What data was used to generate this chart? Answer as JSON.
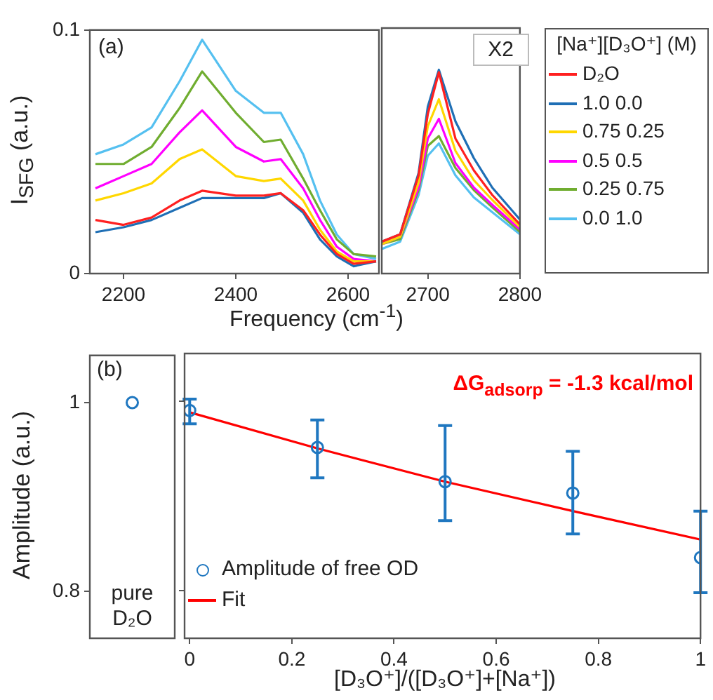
{
  "chart_data": [
    {
      "type": "line",
      "ylabel": "I$_{SFG}$ (a.u.)",
      "xlabel": "Frequency (cm$^{-1}$)",
      "x": [
        2150,
        2200,
        2250,
        2300,
        2340,
        2400,
        2450,
        2480,
        2520,
        2550,
        2580,
        2610,
        2650
      ],
      "xlim": [
        2140,
        2655
      ],
      "xticks": [
        2200,
        2400,
        2600
      ],
      "ylim": [
        0,
        0.1
      ],
      "yticks": [
        0,
        0.1
      ],
      "annotations": [
        "(a)"
      ],
      "series": [
        {
          "color": "#ff2020",
          "values": [
            0.022,
            0.02,
            0.023,
            0.03,
            0.034,
            0.032,
            0.032,
            0.033,
            0.026,
            0.016,
            0.008,
            0.004,
            0.005
          ]
        },
        {
          "color": "#1f6fb5",
          "values": [
            0.017,
            0.019,
            0.022,
            0.027,
            0.031,
            0.031,
            0.031,
            0.033,
            0.025,
            0.014,
            0.007,
            0.003,
            0.005
          ]
        },
        {
          "color": "#ffd700",
          "values": [
            0.03,
            0.033,
            0.037,
            0.047,
            0.051,
            0.04,
            0.038,
            0.039,
            0.03,
            0.018,
            0.009,
            0.005,
            0.005
          ]
        },
        {
          "color": "#ff00ff",
          "values": [
            0.035,
            0.04,
            0.045,
            0.058,
            0.067,
            0.052,
            0.046,
            0.047,
            0.035,
            0.022,
            0.011,
            0.006,
            0.005
          ]
        },
        {
          "color": "#70ad30",
          "values": [
            0.045,
            0.045,
            0.052,
            0.068,
            0.083,
            0.066,
            0.054,
            0.055,
            0.039,
            0.026,
            0.014,
            0.008,
            0.007
          ]
        },
        {
          "color": "#55c0f0",
          "values": [
            0.049,
            0.053,
            0.06,
            0.079,
            0.096,
            0.075,
            0.066,
            0.066,
            0.049,
            0.03,
            0.016,
            0.008,
            0.006
          ]
        }
      ]
    },
    {
      "type": "line",
      "x": [
        2650,
        2670,
        2690,
        2700,
        2712,
        2730,
        2750,
        2770,
        2800
      ],
      "xlim": [
        2650,
        2800
      ],
      "xticks": [
        2700,
        2800
      ],
      "ylim": [
        0,
        0.1
      ],
      "tick_labels": "x",
      "legend": "right",
      "legend_title": "[Na⁺][D₃O⁺] (M)",
      "annotations": [
        "X2"
      ],
      "series": [
        {
          "name": "D₂O",
          "color": "#ff2020",
          "values": [
            0.013,
            0.016,
            0.04,
            0.065,
            0.082,
            0.055,
            0.042,
            0.032,
            0.02
          ]
        },
        {
          "name": "1.0 0.0",
          "color": "#1f6fb5",
          "values": [
            0.013,
            0.016,
            0.041,
            0.068,
            0.083,
            0.062,
            0.047,
            0.035,
            0.022
          ]
        },
        {
          "name": "0.75 0.25",
          "color": "#ffd700",
          "values": [
            0.012,
            0.015,
            0.037,
            0.06,
            0.071,
            0.05,
            0.038,
            0.03,
            0.019
          ]
        },
        {
          "name": "0.5 0.5",
          "color": "#ff00ff",
          "values": [
            0.012,
            0.015,
            0.035,
            0.055,
            0.063,
            0.045,
            0.035,
            0.028,
            0.018
          ]
        },
        {
          "name": "0.25 0.75",
          "color": "#70ad30",
          "values": [
            0.012,
            0.014,
            0.034,
            0.052,
            0.056,
            0.043,
            0.034,
            0.027,
            0.017
          ]
        },
        {
          "name": "0.0 1.0",
          "color": "#55c0f0",
          "values": [
            0.01,
            0.013,
            0.032,
            0.048,
            0.053,
            0.04,
            0.031,
            0.025,
            0.016
          ]
        }
      ]
    },
    {
      "type": "scatter",
      "categories": [
        "pure D₂O"
      ],
      "ylim": [
        0.75,
        1.05
      ],
      "yticks": [
        0.8,
        1
      ],
      "ylabel": "Amplitude (a.u.)",
      "marker": "circle",
      "annotations": [
        "(b)"
      ],
      "series": [
        {
          "color": "#1f77c0",
          "values": [
            1.0
          ]
        }
      ]
    },
    {
      "type": "scatter",
      "x": [
        0,
        0.25,
        0.5,
        0.75,
        1
      ],
      "xlim": [
        -0.01,
        1.0
      ],
      "xticks": [
        0,
        0.2,
        0.4,
        0.6,
        0.8,
        1
      ],
      "ylim": [
        0.75,
        1.05
      ],
      "yticks": [
        0.8,
        1
      ],
      "tick_labels": "x",
      "xlabel": "[D₃O⁺]/([D₃O⁺]+[Na⁺])",
      "legend": "bottom left",
      "marker": "circle",
      "annotations": [
        "ΔG$_{adsorp}$ = -1.3 kcal/mol"
      ],
      "series": [
        {
          "name": "Amplitude of free OD",
          "color": "#1f77c0",
          "values": [
            0.99,
            0.951,
            0.915,
            0.903,
            0.835
          ],
          "errors": [
            [
              0.976,
              1.002
            ],
            [
              0.919,
              0.98
            ],
            [
              0.874,
              0.974
            ],
            [
              0.86,
              0.947
            ],
            [
              0.798,
              0.884
            ]
          ]
        },
        {
          "name": "Fit",
          "type": "line",
          "marker": "none",
          "color": "#ff0000",
          "x": [
            0,
            0.25,
            0.5,
            0.75,
            1
          ],
          "values": [
            0.988,
            0.95,
            0.915,
            0.884,
            0.854
          ]
        }
      ]
    }
  ]
}
